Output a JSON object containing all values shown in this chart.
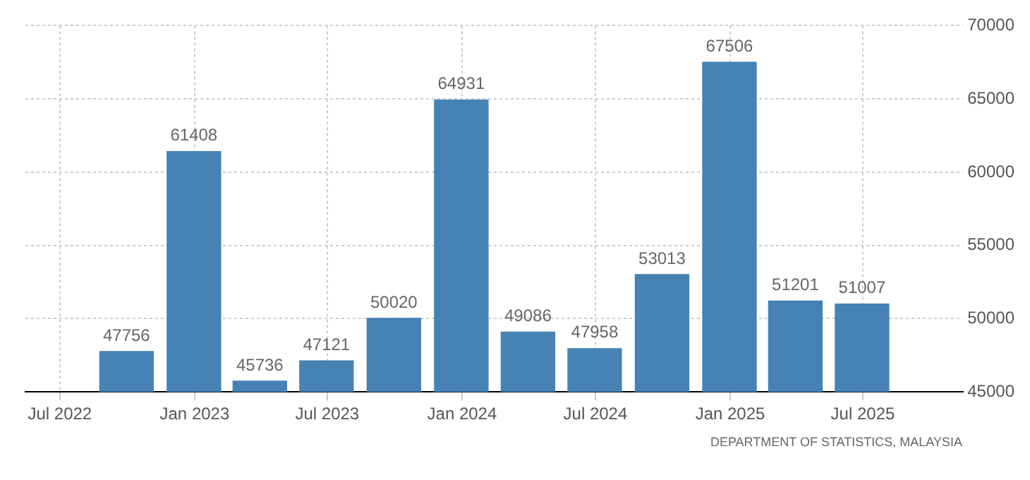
{
  "chart_data": {
    "type": "bar",
    "x": [
      "2022-09-30",
      "2022-12-31",
      "2023-03-31",
      "2023-06-30",
      "2023-09-30",
      "2023-12-31",
      "2024-03-31",
      "2024-06-30",
      "2024-09-30",
      "2024-12-31",
      "2025-03-31",
      "2025-06-30"
    ],
    "values": [
      47756,
      61408,
      45736,
      47121,
      50020,
      64931,
      49086,
      47958,
      53013,
      67506,
      51201,
      51007
    ],
    "color": "#4682b4",
    "data_labels": true,
    "xlim": [
      "2022-05-15",
      "2025-11-15"
    ],
    "xticks": [
      {
        "value": "2022-07",
        "label": "Jul 2022"
      },
      {
        "value": "2023-01",
        "label": "Jan 2023"
      },
      {
        "value": "2023-07",
        "label": "Jul 2023"
      },
      {
        "value": "2024-01",
        "label": "Jan 2024"
      },
      {
        "value": "2024-07",
        "label": "Jul 2024"
      },
      {
        "value": "2025-01",
        "label": "Jan 2025"
      },
      {
        "value": "2025-07",
        "label": "Jul 2025"
      }
    ],
    "ylim": [
      45000,
      70000
    ],
    "yticks": [
      45000,
      50000,
      55000,
      60000,
      65000,
      70000
    ],
    "grid": true,
    "legend": false,
    "annotations": [
      "DEPARTMENT OF STATISTICS, MALAYSIA"
    ]
  }
}
